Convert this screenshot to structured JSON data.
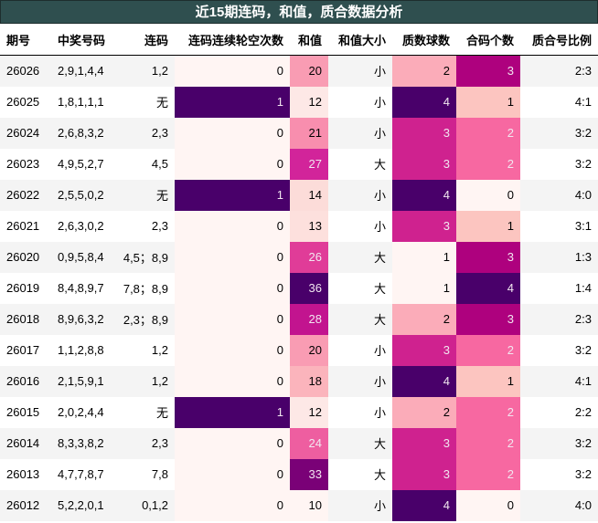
{
  "title": "近15期连码，和值，质合数据分析",
  "columns": [
    "期号",
    "中奖号码",
    "连码",
    "连码连续轮空次数",
    "和值",
    "和值大小",
    "质数球数",
    "合码个数",
    "质合号比例"
  ],
  "rows": [
    {
      "period": "26026",
      "numbers": "2,9,1,4,4",
      "consec": "1,2",
      "gap": "0",
      "sum": "20",
      "size": "小",
      "primes": "2",
      "composites": "3",
      "ratio": "2:3"
    },
    {
      "period": "26025",
      "numbers": "1,8,1,1,1",
      "consec": "无",
      "gap": "1",
      "sum": "12",
      "size": "小",
      "primes": "4",
      "composites": "1",
      "ratio": "4:1"
    },
    {
      "period": "26024",
      "numbers": "2,6,8,3,2",
      "consec": "2,3",
      "gap": "0",
      "sum": "21",
      "size": "小",
      "primes": "3",
      "composites": "2",
      "ratio": "3:2"
    },
    {
      "period": "26023",
      "numbers": "4,9,5,2,7",
      "consec": "4,5",
      "gap": "0",
      "sum": "27",
      "size": "大",
      "primes": "3",
      "composites": "2",
      "ratio": "3:2"
    },
    {
      "period": "26022",
      "numbers": "2,5,5,0,2",
      "consec": "无",
      "gap": "1",
      "sum": "14",
      "size": "小",
      "primes": "4",
      "composites": "0",
      "ratio": "4:0"
    },
    {
      "period": "26021",
      "numbers": "2,6,3,0,2",
      "consec": "2,3",
      "gap": "0",
      "sum": "13",
      "size": "小",
      "primes": "3",
      "composites": "1",
      "ratio": "3:1"
    },
    {
      "period": "26020",
      "numbers": "0,9,5,8,4",
      "consec": "4,5；8,9",
      "gap": "0",
      "sum": "26",
      "size": "大",
      "primes": "1",
      "composites": "3",
      "ratio": "1:3"
    },
    {
      "period": "26019",
      "numbers": "8,4,8,9,7",
      "consec": "7,8；8,9",
      "gap": "0",
      "sum": "36",
      "size": "大",
      "primes": "1",
      "composites": "4",
      "ratio": "1:4"
    },
    {
      "period": "26018",
      "numbers": "8,9,6,3,2",
      "consec": "2,3；8,9",
      "gap": "0",
      "sum": "28",
      "size": "大",
      "primes": "2",
      "composites": "3",
      "ratio": "2:3"
    },
    {
      "period": "26017",
      "numbers": "1,1,2,8,8",
      "consec": "1,2",
      "gap": "0",
      "sum": "20",
      "size": "小",
      "primes": "3",
      "composites": "2",
      "ratio": "3:2"
    },
    {
      "period": "26016",
      "numbers": "2,1,5,9,1",
      "consec": "1,2",
      "gap": "0",
      "sum": "18",
      "size": "小",
      "primes": "4",
      "composites": "1",
      "ratio": "4:1"
    },
    {
      "period": "26015",
      "numbers": "2,0,2,4,4",
      "consec": "无",
      "gap": "1",
      "sum": "12",
      "size": "小",
      "primes": "2",
      "composites": "2",
      "ratio": "2:2"
    },
    {
      "period": "26014",
      "numbers": "8,3,3,8,2",
      "consec": "2,3",
      "gap": "0",
      "sum": "24",
      "size": "大",
      "primes": "3",
      "composites": "2",
      "ratio": "3:2"
    },
    {
      "period": "26013",
      "numbers": "4,7,7,8,7",
      "consec": "7,8",
      "gap": "0",
      "sum": "33",
      "size": "大",
      "primes": "3",
      "composites": "2",
      "ratio": "3:2"
    },
    {
      "period": "26012",
      "numbers": "5,2,2,0,1",
      "consec": "0,1,2",
      "gap": "0",
      "sum": "10",
      "size": "小",
      "primes": "4",
      "composites": "0",
      "ratio": "4:0"
    }
  ],
  "heatmap_colors": {
    "gap": {
      "0": "#fff5f3",
      "1": "#49006a"
    },
    "sum": {
      "10": "#fff5f3",
      "12": "#fde8e6",
      "13": "#fde0dd",
      "14": "#fcdcd9",
      "18": "#fbb4bc",
      "20": "#f99cb3",
      "21": "#f88eae",
      "24": "#ee5ea0",
      "26": "#e03c98",
      "27": "#d2249a",
      "28": "#c2148f",
      "33": "#7a0177",
      "36": "#49006a"
    },
    "primes": {
      "1": "#fff5f3",
      "2": "#fbacb9",
      "3": "#cf228f",
      "4": "#49006a"
    },
    "composites": {
      "0": "#fff5f3",
      "1": "#fcc5c0",
      "2": "#f768a1",
      "3": "#ae017e",
      "4": "#49006a"
    }
  },
  "dark_text_threshold": {
    "gap": [
      "1"
    ],
    "sum": [
      "24",
      "26",
      "27",
      "28",
      "33",
      "36"
    ],
    "primes": [
      "3",
      "4"
    ],
    "composites": [
      "2",
      "3",
      "4"
    ]
  }
}
